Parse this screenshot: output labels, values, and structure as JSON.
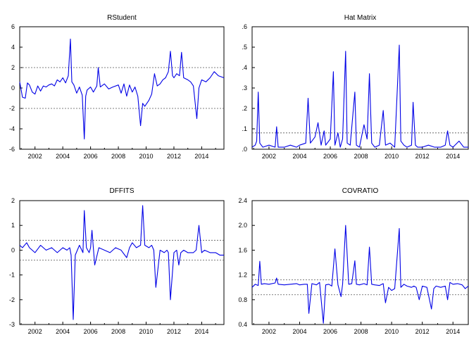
{
  "chart_data": [
    {
      "type": "line",
      "title": "RStudent",
      "xticks": [
        "2002",
        "2004",
        "2006",
        "2008",
        "2010",
        "2012",
        "2014"
      ],
      "xlim": [
        2000.9,
        2015.6
      ],
      "yticks": [
        "6",
        "4",
        "2",
        "0",
        "-2",
        "-4",
        "-6"
      ],
      "ylim": [
        -6,
        6
      ],
      "ref_lines": [
        2,
        -2
      ],
      "series": [
        {
          "x": [
            2000.9,
            2001.1,
            2001.3,
            2001.45,
            2001.6,
            2001.8,
            2002.0,
            2002.2,
            2002.4,
            2002.6,
            2002.8,
            2003.0,
            2003.2,
            2003.4,
            2003.6,
            2003.8,
            2004.0,
            2004.2,
            2004.4,
            2004.55,
            2004.65,
            2004.8,
            2005.0,
            2005.2,
            2005.4,
            2005.55,
            2005.65,
            2005.75,
            2006.0,
            2006.2,
            2006.45,
            2006.55,
            2006.7,
            2007.0,
            2007.3,
            2007.6,
            2008.0,
            2008.2,
            2008.4,
            2008.6,
            2008.8,
            2009.0,
            2009.2,
            2009.4,
            2009.6,
            2009.75,
            2009.9,
            2010.2,
            2010.4,
            2010.6,
            2010.8,
            2011.0,
            2011.2,
            2011.4,
            2011.6,
            2011.75,
            2011.9,
            2012.0,
            2012.2,
            2012.4,
            2012.55,
            2012.7,
            2013.0,
            2013.2,
            2013.4,
            2013.65,
            2013.8,
            2014.0,
            2014.3,
            2014.6,
            2014.9,
            2015.2,
            2015.6
          ],
          "y": [
            0.6,
            -0.9,
            -1.0,
            0.5,
            0.3,
            -0.4,
            -0.6,
            0.2,
            -0.3,
            0.2,
            0.1,
            0.3,
            0.4,
            0.2,
            0.8,
            0.6,
            1.0,
            0.5,
            1.2,
            4.8,
            0.6,
            0.3,
            -0.5,
            0.1,
            -0.7,
            -5.0,
            -0.8,
            -0.2,
            0.1,
            -0.4,
            0.2,
            2.0,
            0.1,
            0.4,
            -0.1,
            0.1,
            0.3,
            -0.5,
            0.4,
            -0.8,
            0.3,
            -0.4,
            0.1,
            -0.8,
            -3.7,
            -1.5,
            -1.8,
            -1.2,
            -0.6,
            1.4,
            0.2,
            0.4,
            0.8,
            1.0,
            1.6,
            3.6,
            1.2,
            1.0,
            1.4,
            1.2,
            3.5,
            1.0,
            0.8,
            0.6,
            0.2,
            -3.0,
            0.0,
            0.8,
            0.6,
            1.0,
            1.6,
            1.2,
            1.0
          ]
        }
      ]
    },
    {
      "type": "line",
      "title": "Hat Matrix",
      "xticks": [
        "2002",
        "2004",
        "2006",
        "2008",
        "2010",
        "2012",
        "2014"
      ],
      "xlim": [
        2000.9,
        2015.0
      ],
      "yticks": [
        ".6",
        ".5",
        ".4",
        ".3",
        ".2",
        ".1",
        ".0"
      ],
      "ylim": [
        0,
        0.6
      ],
      "ref_lines": [
        0.08
      ],
      "series": [
        {
          "x": [
            2000.9,
            2001.1,
            2001.2,
            2001.3,
            2001.4,
            2001.6,
            2002.0,
            2002.4,
            2002.5,
            2002.6,
            2003.0,
            2003.4,
            2003.8,
            2004.0,
            2004.4,
            2004.55,
            2004.7,
            2005.0,
            2005.2,
            2005.4,
            2005.6,
            2005.7,
            2006.0,
            2006.2,
            2006.3,
            2006.5,
            2006.65,
            2006.8,
            2007.0,
            2007.1,
            2007.3,
            2007.6,
            2007.7,
            2007.9,
            2008.2,
            2008.4,
            2008.55,
            2008.7,
            2008.9,
            2009.2,
            2009.45,
            2009.6,
            2009.9,
            2010.2,
            2010.5,
            2010.6,
            2010.8,
            2011.0,
            2011.3,
            2011.4,
            2011.55,
            2011.7,
            2012.0,
            2012.4,
            2012.8,
            2013.2,
            2013.5,
            2013.65,
            2013.8,
            2014.0,
            2014.4,
            2014.7,
            2015.0
          ],
          "y": [
            0.01,
            0.02,
            0.04,
            0.28,
            0.03,
            0.01,
            0.02,
            0.01,
            0.11,
            0.01,
            0.01,
            0.02,
            0.01,
            0.02,
            0.03,
            0.25,
            0.03,
            0.06,
            0.13,
            0.02,
            0.09,
            0.02,
            0.05,
            0.38,
            0.02,
            0.08,
            0.01,
            0.05,
            0.48,
            0.03,
            0.02,
            0.28,
            0.02,
            0.01,
            0.12,
            0.05,
            0.37,
            0.03,
            0.01,
            0.02,
            0.19,
            0.02,
            0.03,
            0.01,
            0.51,
            0.04,
            0.02,
            0.01,
            0.02,
            0.23,
            0.02,
            0.01,
            0.01,
            0.02,
            0.01,
            0.01,
            0.02,
            0.09,
            0.02,
            0.01,
            0.04,
            0.01,
            0.01
          ]
        }
      ]
    },
    {
      "type": "line",
      "title": "DFFITS",
      "xticks": [
        "2002",
        "2004",
        "2006",
        "2008",
        "2010",
        "2012",
        "2014"
      ],
      "xlim": [
        2000.9,
        2015.6
      ],
      "yticks": [
        "2",
        "1",
        "0",
        "-1",
        "-2",
        "-3"
      ],
      "ylim": [
        -3,
        2
      ],
      "ref_lines": [
        0.4,
        -0.4
      ],
      "series": [
        {
          "x": [
            2000.9,
            2001.1,
            2001.4,
            2001.6,
            2002.0,
            2002.4,
            2002.8,
            2003.2,
            2003.6,
            2004.0,
            2004.3,
            2004.5,
            2004.6,
            2004.75,
            2004.9,
            2005.2,
            2005.45,
            2005.55,
            2005.7,
            2005.9,
            2006.0,
            2006.1,
            2006.3,
            2006.6,
            2007.0,
            2007.4,
            2007.8,
            2008.2,
            2008.6,
            2008.8,
            2009.0,
            2009.3,
            2009.6,
            2009.75,
            2009.9,
            2010.2,
            2010.4,
            2010.55,
            2010.7,
            2011.0,
            2011.3,
            2011.5,
            2011.6,
            2011.75,
            2012.0,
            2012.2,
            2012.35,
            2012.5,
            2012.7,
            2013.0,
            2013.4,
            2013.6,
            2013.8,
            2014.0,
            2014.2,
            2014.6,
            2015.0,
            2015.3,
            2015.6
          ],
          "y": [
            0.2,
            0.1,
            0.3,
            0.1,
            -0.1,
            0.2,
            0.0,
            0.1,
            -0.1,
            0.1,
            0.0,
            0.1,
            -0.2,
            -2.8,
            -0.2,
            0.2,
            -0.1,
            1.6,
            0.1,
            -0.1,
            0.1,
            0.8,
            -0.6,
            0.1,
            0.0,
            -0.1,
            0.1,
            0.0,
            -0.3,
            0.1,
            0.3,
            0.1,
            0.2,
            1.8,
            0.2,
            0.1,
            0.2,
            0.0,
            -1.5,
            0.0,
            -0.1,
            0.0,
            -0.1,
            -2.0,
            -0.1,
            0.0,
            -0.6,
            -0.1,
            0.0,
            -0.1,
            -0.1,
            0.0,
            1.0,
            -0.1,
            0.0,
            -0.1,
            -0.1,
            -0.2,
            -0.2
          ]
        }
      ]
    },
    {
      "type": "line",
      "title": "COVRATIO",
      "xticks": [
        "2002",
        "2004",
        "2006",
        "2008",
        "2010",
        "2012",
        "2014"
      ],
      "xlim": [
        2000.9,
        2015.0
      ],
      "yticks": [
        "2.4",
        "2.0",
        "1.6",
        "1.2",
        "0.8",
        "0.4"
      ],
      "ylim": [
        0.4,
        2.4
      ],
      "ref_lines": [
        1.12,
        0.88
      ],
      "series": [
        {
          "x": [
            2000.9,
            2001.1,
            2001.3,
            2001.4,
            2001.5,
            2001.7,
            2002.0,
            2002.4,
            2002.5,
            2002.6,
            2003.0,
            2003.4,
            2003.8,
            2004.0,
            2004.3,
            2004.5,
            2004.6,
            2004.8,
            2005.1,
            2005.3,
            2005.55,
            2005.7,
            2005.9,
            2006.1,
            2006.3,
            2006.5,
            2006.7,
            2006.8,
            2007.0,
            2007.2,
            2007.4,
            2007.6,
            2007.7,
            2007.9,
            2008.2,
            2008.4,
            2008.55,
            2008.7,
            2008.9,
            2009.2,
            2009.45,
            2009.6,
            2009.8,
            2010.0,
            2010.2,
            2010.5,
            2010.6,
            2010.8,
            2011.0,
            2011.3,
            2011.45,
            2011.6,
            2011.8,
            2012.0,
            2012.3,
            2012.6,
            2012.75,
            2012.9,
            2013.2,
            2013.5,
            2013.65,
            2013.8,
            2014.0,
            2014.3,
            2014.6,
            2014.8,
            2015.0
          ],
          "y": [
            1.0,
            1.05,
            1.03,
            1.42,
            1.05,
            1.06,
            1.05,
            1.07,
            1.15,
            1.05,
            1.04,
            1.05,
            1.06,
            1.04,
            1.05,
            1.05,
            0.58,
            1.06,
            1.04,
            1.08,
            0.42,
            1.04,
            1.05,
            1.02,
            1.62,
            1.04,
            0.85,
            1.05,
            2.0,
            1.05,
            1.06,
            1.43,
            1.05,
            1.04,
            1.06,
            1.04,
            1.65,
            1.05,
            1.04,
            1.03,
            1.06,
            0.75,
            1.0,
            0.95,
            0.98,
            1.95,
            1.0,
            1.05,
            1.02,
            1.0,
            1.02,
            1.0,
            0.8,
            1.02,
            1.0,
            0.65,
            0.98,
            1.02,
            1.0,
            1.02,
            0.8,
            1.08,
            1.05,
            1.06,
            1.04,
            0.98,
            1.02
          ]
        }
      ]
    }
  ]
}
